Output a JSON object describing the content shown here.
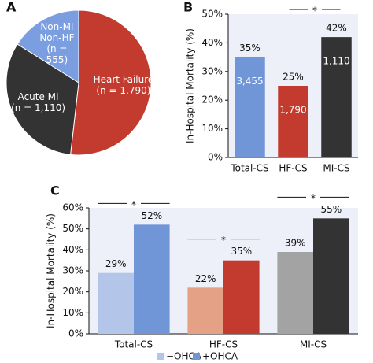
{
  "chart_data": [
    {
      "type": "pie",
      "panel": "A",
      "categories": [
        "Heart Failure",
        "Acute MI",
        "Non-MI Non-HF"
      ],
      "values": [
        1790,
        1110,
        555
      ],
      "value_labels": [
        "(n = 1,790)",
        "(n = 1,110)",
        "(n = 555)"
      ],
      "colors": [
        "#c23b2e",
        "#333333",
        "#7b9ee0"
      ]
    },
    {
      "type": "bar",
      "panel": "B",
      "ylabel": "In-Hospital Mortality (%)",
      "categories": [
        "Total-CS",
        "HF-CS",
        "MI-CS"
      ],
      "values": [
        35,
        25,
        42
      ],
      "value_labels": [
        "35%",
        "25%",
        "42%"
      ],
      "counts": [
        3455,
        1790,
        1110
      ],
      "count_labels": [
        "3,455",
        "1,790",
        "1,110"
      ],
      "colors": [
        "#7096d8",
        "#c23b2e",
        "#333333"
      ],
      "annotation": "*",
      "ylim": [
        0,
        50
      ],
      "yticks": [
        {
          "value": 0,
          "label": "0%"
        },
        {
          "value": 10,
          "label": "10%"
        },
        {
          "value": 20,
          "label": "20%"
        },
        {
          "value": 30,
          "label": "30%"
        },
        {
          "value": 40,
          "label": "40%"
        },
        {
          "value": 50,
          "label": "50%"
        }
      ]
    },
    {
      "type": "bar",
      "panel": "C",
      "ylabel": "In-Hospital Mortality (%)",
      "categories": [
        "Total-CS",
        "HF-CS",
        "MI-CS"
      ],
      "series": [
        {
          "name": "−OHCA",
          "color": "#b4c5ea",
          "colors": [
            "#b4c5ea",
            "#e4a185",
            "#a3a3a3"
          ],
          "values": [
            29,
            22,
            39
          ],
          "value_labels": [
            "29%",
            "22%",
            "39%"
          ]
        },
        {
          "name": "+OHCA",
          "color": "#7096d8",
          "colors": [
            "#7096d8",
            "#c23b2e",
            "#333333"
          ],
          "values": [
            52,
            35,
            55
          ],
          "value_labels": [
            "52%",
            "35%",
            "55%"
          ]
        }
      ],
      "annotations": [
        "*",
        "*",
        "*"
      ],
      "ylim": [
        0,
        60
      ],
      "yticks": [
        {
          "value": 0,
          "label": "0%"
        },
        {
          "value": 10,
          "label": "10%"
        },
        {
          "value": 20,
          "label": "20%"
        },
        {
          "value": 30,
          "label": "30%"
        },
        {
          "value": 40,
          "label": "40%"
        },
        {
          "value": 50,
          "label": "50%"
        },
        {
          "value": 60,
          "label": "60%"
        }
      ]
    }
  ]
}
